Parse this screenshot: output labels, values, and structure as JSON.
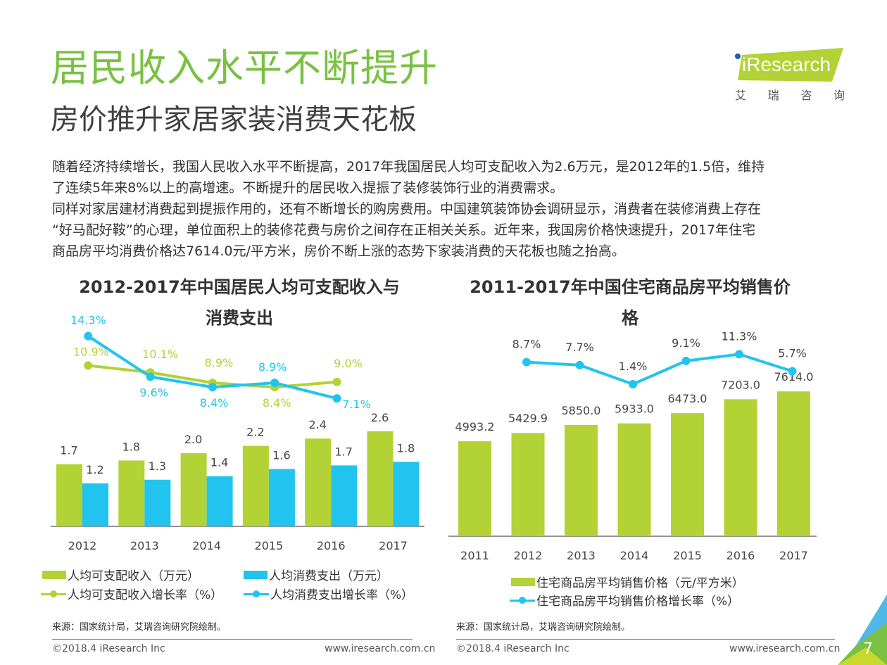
{
  "header": {
    "title": "居民收入水平不断提升",
    "subtitle": "房价推升家居家装消费天花板"
  },
  "logo": {
    "brand": "iResearch",
    "cn_chars": [
      "艾",
      "瑞",
      "咨",
      "询"
    ]
  },
  "body_text": {
    "line1": "随着经济持续增长，我国人民收入水平不断提高，2017年我国居民人均可支配收入为2.6万元，是2012年的1.5倍，维持",
    "line2": "了连续5年来8%以上的高增速。不断提升的居民收入提振了装修装饰行业的消费需求。",
    "line3": "同样对家居建材消费起到提振作用的，还有不断增长的购房费用。中国建筑装饰协会调研显示，消费者在装修消费上存在",
    "line4": "“好马配好鞍”的心理，单位面积上的装修花费与房价之间存在正相关关系。近年来，我国房价格快速提升，2017年住宅",
    "line5": "商品房平均消费价格达7614.0元/平方米，房价不断上涨的态势下家装消费的天花板也随之抬高。"
  },
  "colors": {
    "green": "#b2d235",
    "blue": "#21c4ef",
    "title_green": "#7ac143",
    "text_dark": "#333333"
  },
  "chart_data": [
    {
      "type": "bar",
      "title_line1": "2012-2017年中国居民人均可支配收入与",
      "title_line2": "消费支出",
      "categories": [
        "2012",
        "2013",
        "2014",
        "2015",
        "2016",
        "2017"
      ],
      "series": [
        {
          "name": "人均可支配收入（万元）",
          "kind": "bar",
          "color": "#b2d235",
          "values": [
            1.7,
            1.8,
            2.0,
            2.2,
            2.4,
            2.6
          ],
          "labels": [
            "1.7",
            "1.8",
            "2.0",
            "2.2",
            "2.4",
            "2.6"
          ]
        },
        {
          "name": "人均消费支出（万元）",
          "kind": "bar",
          "color": "#21c4ef",
          "values": [
            1.2,
            1.3,
            1.4,
            1.6,
            1.7,
            1.8
          ],
          "labels": [
            "1.2",
            "1.3",
            "1.4",
            "1.6",
            "1.7",
            "1.8"
          ]
        },
        {
          "name": "人均可支配收入增长率（%）",
          "kind": "line",
          "color": "#b2d235",
          "values": [
            10.9,
            10.1,
            8.9,
            8.4,
            9.0
          ],
          "labels": [
            "10.9%",
            "10.1%",
            "8.9%",
            "8.4%",
            "9.0%"
          ],
          "categories": [
            "2013",
            "2014",
            "2015",
            "2016",
            "2017"
          ]
        },
        {
          "name": "人均消费支出增长率（%）",
          "kind": "line",
          "color": "#21c4ef",
          "values": [
            14.3,
            9.6,
            8.4,
            8.9,
            7.1
          ],
          "labels": [
            "14.3%",
            "9.6%",
            "8.4%",
            "8.9%",
            "7.1%"
          ],
          "categories": [
            "2013",
            "2014",
            "2015",
            "2016",
            "2017"
          ]
        }
      ],
      "legend": [
        {
          "label": "人均可支配收入（万元）",
          "kind": "bar",
          "color": "#b2d235"
        },
        {
          "label": "人均消费支出（万元）",
          "kind": "bar",
          "color": "#21c4ef"
        },
        {
          "label": "人均可支配收入增长率（%）",
          "kind": "line",
          "color": "#b2d235"
        },
        {
          "label": "人均消费支出增长率（%）",
          "kind": "line",
          "color": "#21c4ef"
        }
      ],
      "legend_position": "bottom",
      "grid": false,
      "source": "来源：国家统计局，艾瑞咨询研究院绘制。"
    },
    {
      "type": "bar",
      "title_line1": "2011-2017年中国住宅商品房平均销售价",
      "title_line2": "格",
      "categories": [
        "2011",
        "2012",
        "2013",
        "2014",
        "2015",
        "2016",
        "2017"
      ],
      "series": [
        {
          "name": "住宅商品房平均销售价格（元/平方米）",
          "kind": "bar",
          "color": "#b2d235",
          "values": [
            4993.2,
            5429.9,
            5850.0,
            5933.0,
            6473.0,
            7203.0,
            7614.0
          ],
          "labels": [
            "4993.2",
            "5429.9",
            "5850.0",
            "5933.0",
            "6473.0",
            "7203.0",
            "7614.0"
          ]
        },
        {
          "name": "住宅商品房平均销售价格增长率（%）",
          "kind": "line",
          "color": "#21c4ef",
          "values": [
            8.7,
            7.7,
            1.4,
            9.1,
            11.3,
            5.7
          ],
          "labels": [
            "8.7%",
            "7.7%",
            "1.4%",
            "9.1%",
            "11.3%",
            "5.7%"
          ],
          "categories": [
            "2012",
            "2013",
            "2014",
            "2015",
            "2016",
            "2017"
          ]
        }
      ],
      "legend": [
        {
          "label": "住宅商品房平均销售价格（元/平方米）",
          "kind": "bar",
          "color": "#b2d235"
        },
        {
          "label": "住宅商品房平均销售价格增长率（%）",
          "kind": "line",
          "color": "#21c4ef"
        }
      ],
      "legend_position": "bottom",
      "grid": false,
      "source": "来源：国家统计局，艾瑞咨询研究院绘制。"
    }
  ],
  "footer": {
    "copyright": "©2018.4 iResearch Inc",
    "website": "www.iresearch.com.cn",
    "page_number": "7"
  }
}
